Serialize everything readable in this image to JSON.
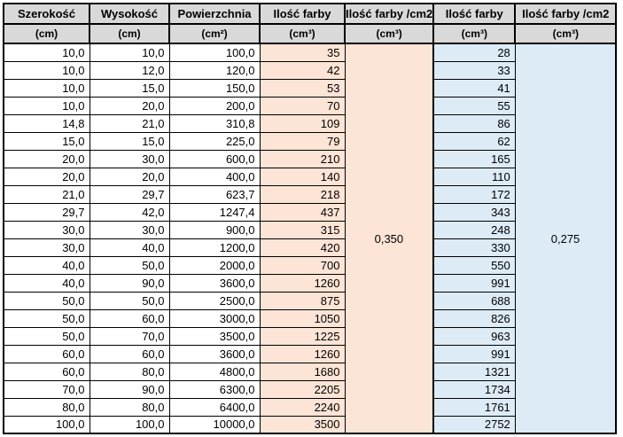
{
  "table": {
    "headers": [
      {
        "name": "Szerokość",
        "unit": "(cm)"
      },
      {
        "name": "Wysokość",
        "unit": "(cm)"
      },
      {
        "name": "Powierzchnia",
        "unit": "(cm²)"
      },
      {
        "name": "Ilość farby",
        "unit": "(cm³)"
      },
      {
        "name": "Ilość farby /cm2",
        "unit": "(cm³)"
      },
      {
        "name": "Ilość farby",
        "unit": "(cm³)"
      },
      {
        "name": "Ilość farby /cm2",
        "unit": "(cm³)"
      }
    ],
    "rate_orange": "0,350",
    "rate_blue": "0,275",
    "rows": [
      [
        "10,0",
        "10,0",
        "100,0",
        "35",
        "28"
      ],
      [
        "10,0",
        "12,0",
        "120,0",
        "42",
        "33"
      ],
      [
        "10,0",
        "15,0",
        "150,0",
        "53",
        "41"
      ],
      [
        "10,0",
        "20,0",
        "200,0",
        "70",
        "55"
      ],
      [
        "14,8",
        "21,0",
        "310,8",
        "109",
        "86"
      ],
      [
        "15,0",
        "15,0",
        "225,0",
        "79",
        "62"
      ],
      [
        "20,0",
        "30,0",
        "600,0",
        "210",
        "165"
      ],
      [
        "20,0",
        "20,0",
        "400,0",
        "140",
        "110"
      ],
      [
        "21,0",
        "29,7",
        "623,7",
        "218",
        "172"
      ],
      [
        "29,7",
        "42,0",
        "1247,4",
        "437",
        "343"
      ],
      [
        "30,0",
        "30,0",
        "900,0",
        "315",
        "248"
      ],
      [
        "30,0",
        "40,0",
        "1200,0",
        "420",
        "330"
      ],
      [
        "40,0",
        "50,0",
        "2000,0",
        "700",
        "550"
      ],
      [
        "40,0",
        "90,0",
        "3600,0",
        "1260",
        "991"
      ],
      [
        "50,0",
        "50,0",
        "2500,0",
        "875",
        "688"
      ],
      [
        "50,0",
        "60,0",
        "3000,0",
        "1050",
        "826"
      ],
      [
        "50,0",
        "70,0",
        "3500,0",
        "1225",
        "963"
      ],
      [
        "60,0",
        "60,0",
        "3600,0",
        "1260",
        "991"
      ],
      [
        "60,0",
        "80,0",
        "4800,0",
        "1680",
        "1321"
      ],
      [
        "70,0",
        "90,0",
        "6300,0",
        "2205",
        "1734"
      ],
      [
        "80,0",
        "80,0",
        "6400,0",
        "2240",
        "1761"
      ],
      [
        "100,0",
        "100,0",
        "10000,0",
        "3500",
        "2752"
      ]
    ],
    "colors": {
      "header_bg": "#d9d9d9",
      "orange_bg": "#fce4d6",
      "blue_bg": "#ddebf7",
      "border": "#000000"
    }
  }
}
